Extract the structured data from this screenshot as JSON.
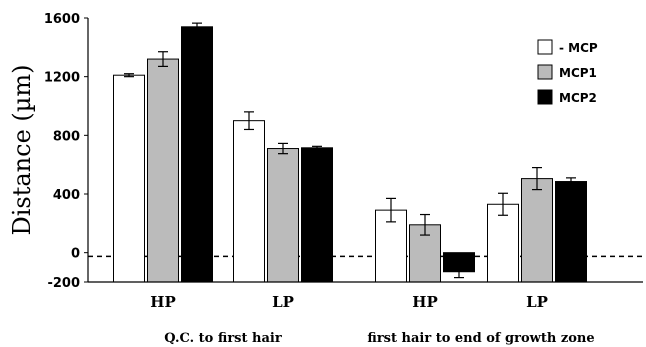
{
  "chart_data": {
    "type": "bar",
    "ylabel": "Distance (µm)",
    "ylim": [
      -200,
      1600
    ],
    "yticks": [
      -200,
      0,
      400,
      800,
      1200,
      1600
    ],
    "ytick_labels": [
      "-200",
      "0",
      "400",
      "800",
      "1200",
      "1600"
    ],
    "reference_line": {
      "y": -25,
      "style": "dashed"
    },
    "legend_position": "top-right",
    "categories": [
      "HP",
      "LP",
      "HP",
      "LP"
    ],
    "groups": [
      {
        "label": "Q.C. to first hair",
        "categories": [
          0,
          1
        ]
      },
      {
        "label": "first hair to end of growth zone",
        "categories": [
          2,
          3
        ]
      }
    ],
    "series": [
      {
        "name": "- MCP",
        "color": "#ffffff",
        "values": [
          1210,
          900,
          290,
          330
        ],
        "errors": [
          10,
          60,
          80,
          75
        ]
      },
      {
        "name": "MCP1",
        "color": "#bbbbbb",
        "values": [
          1320,
          710,
          190,
          505
        ],
        "errors": [
          50,
          35,
          70,
          75
        ]
      },
      {
        "name": "MCP2",
        "color": "#000000",
        "values": [
          1540,
          715,
          -130,
          485
        ],
        "errors": [
          25,
          10,
          40,
          25
        ]
      }
    ]
  }
}
